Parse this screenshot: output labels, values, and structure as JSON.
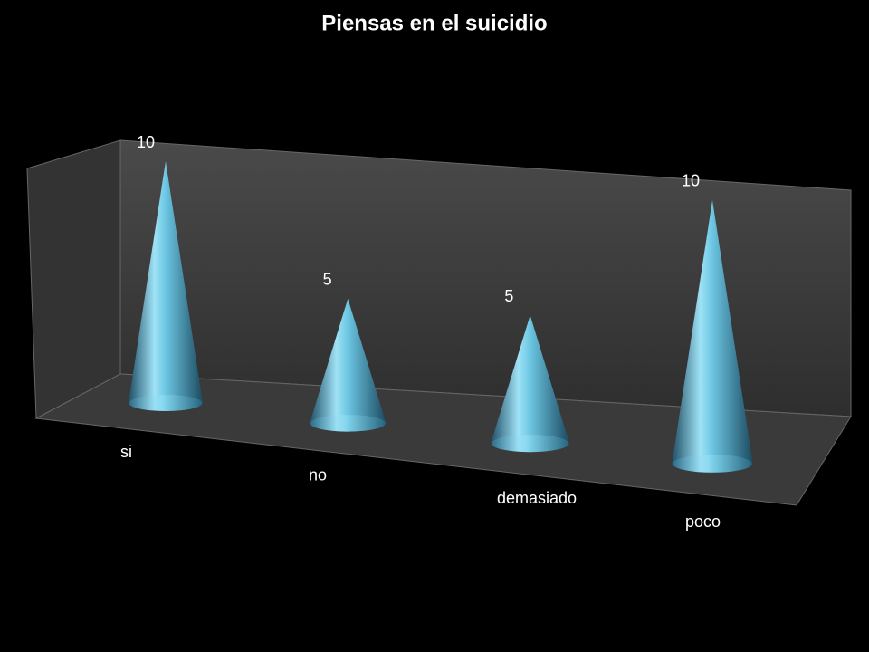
{
  "chart_data": {
    "type": "cone",
    "title": "Piensas en el suicidio",
    "categories": [
      "si",
      "no",
      "demasiado",
      "poco"
    ],
    "values": [
      10,
      5,
      5,
      10
    ],
    "color": "#5fc8e8"
  }
}
